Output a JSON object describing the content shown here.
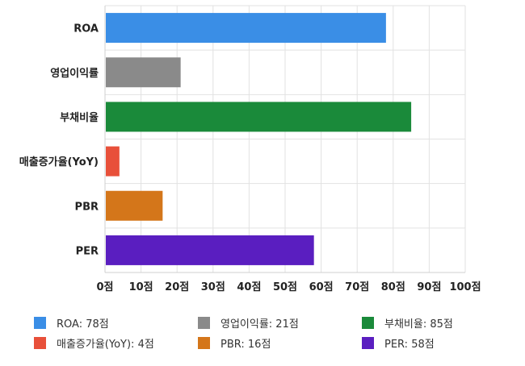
{
  "chart_data": {
    "type": "bar",
    "orientation": "horizontal",
    "categories": [
      "ROA",
      "영업이익률",
      "부채비율",
      "매출증가율(YoY)",
      "PBR",
      "PER"
    ],
    "values": [
      78,
      21,
      85,
      4,
      16,
      58
    ],
    "colors": [
      "#3a8ee6",
      "#8a8a8a",
      "#1a8a3a",
      "#e8503a",
      "#d4761a",
      "#5a1ec0"
    ],
    "xlim": [
      0,
      100
    ],
    "x_ticks": [
      0,
      10,
      20,
      30,
      40,
      50,
      60,
      70,
      80,
      90,
      100
    ],
    "x_tick_labels": [
      "0점",
      "10점",
      "20점",
      "30점",
      "40점",
      "50점",
      "60점",
      "70점",
      "80점",
      "90점",
      "100점"
    ],
    "grid": true,
    "legend_position": "bottom",
    "legend": [
      "ROA: 78점",
      "영업이익률: 21점",
      "부채비율: 85점",
      "매출증가율(YoY): 4점",
      "PBR: 16점",
      "PER: 58점"
    ]
  }
}
